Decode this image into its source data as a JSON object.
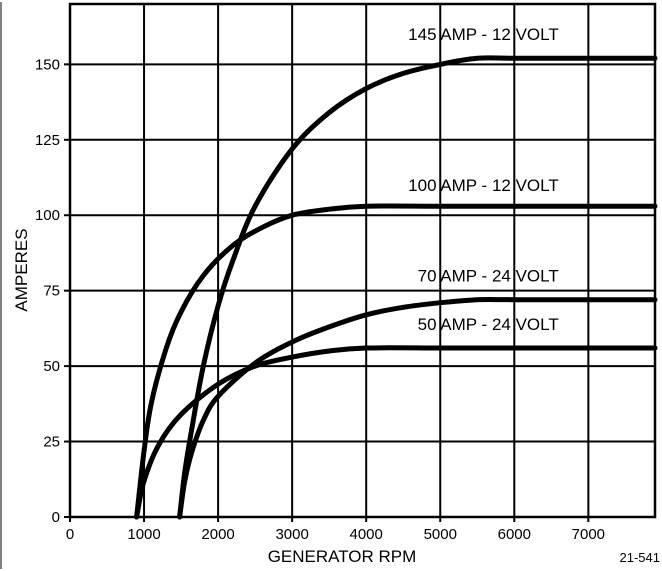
{
  "chart_data": {
    "type": "line",
    "xlabel": "GENERATOR RPM",
    "ylabel": "AMPERES",
    "xlim": [
      0,
      7900
    ],
    "ylim": [
      0,
      170
    ],
    "x_ticks": [
      0,
      1000,
      2000,
      3000,
      4000,
      5000,
      6000,
      7000
    ],
    "x_tick_labels": [
      "0",
      "1000",
      "2000",
      "3000",
      "4000",
      "5000",
      "6000",
      "7000"
    ],
    "y_ticks": [
      0,
      25,
      50,
      75,
      100,
      125,
      150
    ],
    "y_tick_labels": [
      "0",
      "25",
      "50",
      "75",
      "100",
      "125",
      "150"
    ],
    "grid": true,
    "figure_code": "21-541",
    "series": [
      {
        "name": "145 AMP - 12 VOLT",
        "x": [
          1480,
          1550,
          1650,
          1800,
          2000,
          2200,
          2500,
          3000,
          3500,
          4000,
          4500,
          5000,
          5500,
          6000,
          7000,
          7900
        ],
        "values": [
          0,
          15,
          30,
          50,
          70,
          85,
          103,
          122,
          134,
          142,
          147,
          150,
          152,
          152,
          152,
          152
        ]
      },
      {
        "name": "100 AMP - 12 VOLT",
        "x": [
          900,
          1000,
          1100,
          1300,
          1500,
          1800,
          2200,
          2600,
          3000,
          3500,
          4000,
          5000,
          6000,
          7000,
          7900
        ],
        "values": [
          0,
          22,
          38,
          56,
          68,
          80,
          90,
          96,
          100,
          102,
          103,
          103,
          103,
          103,
          103
        ]
      },
      {
        "name": "70 AMP - 24 VOLT",
        "x": [
          1480,
          1550,
          1650,
          1800,
          2000,
          2500,
          3000,
          3500,
          4000,
          4500,
          5000,
          5500,
          6000,
          7000,
          7900
        ],
        "values": [
          0,
          12,
          22,
          32,
          40,
          51,
          58,
          63,
          67,
          69.5,
          71,
          72,
          72,
          72,
          72
        ]
      },
      {
        "name": "50 AMP - 24 VOLT",
        "x": [
          900,
          1000,
          1200,
          1500,
          2000,
          2500,
          3000,
          3500,
          4000,
          5000,
          6000,
          7000,
          7900
        ],
        "values": [
          0,
          12,
          24,
          34,
          44,
          50,
          53,
          55,
          56,
          56,
          56,
          56,
          56
        ]
      }
    ],
    "label_anchor": [
      {
        "x": 6600,
        "y": 158
      },
      {
        "x": 6600,
        "y": 108
      },
      {
        "x": 6600,
        "y": 78
      },
      {
        "x": 6600,
        "y": 62
      }
    ],
    "colors": {
      "line": "#000000",
      "background": "#ffffff"
    }
  }
}
